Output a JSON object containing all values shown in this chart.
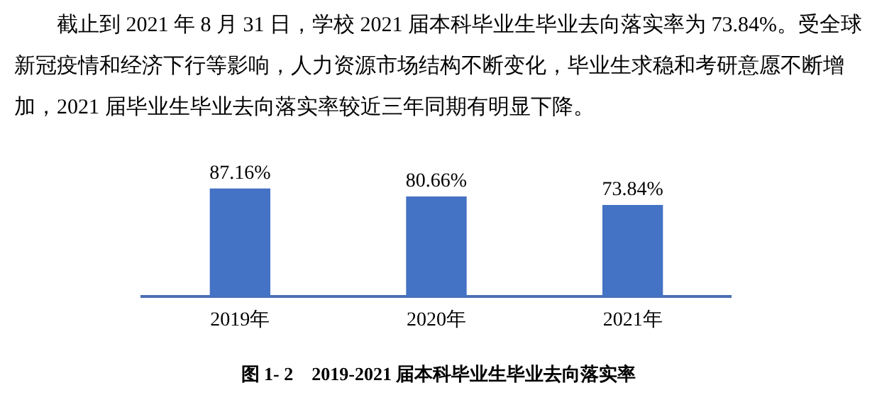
{
  "chart_data": {
    "type": "bar",
    "title": "图 1- 2    2019-2021 届本科毕业生毕业去向落实率",
    "annotations": [
      "截止到 2021 年 8 月 31 日，学校 2021 届本科毕业生毕业去向落实率为 73.84%。受全球新冠疫情和经济下行等影响，人力资源市场结构不断变化，毕业生求稳和考研意愿不断增加，2021 届毕业生毕业去向落实率较近三年同期有明显下降。"
    ],
    "categories": [
      "2019年",
      "2020年",
      "2021年"
    ],
    "values": [
      87.16,
      80.66,
      73.84
    ],
    "value_labels": [
      "87.16%",
      "80.66%",
      "73.84%"
    ],
    "color": "#4472c4",
    "grid": false,
    "legend": false
  }
}
